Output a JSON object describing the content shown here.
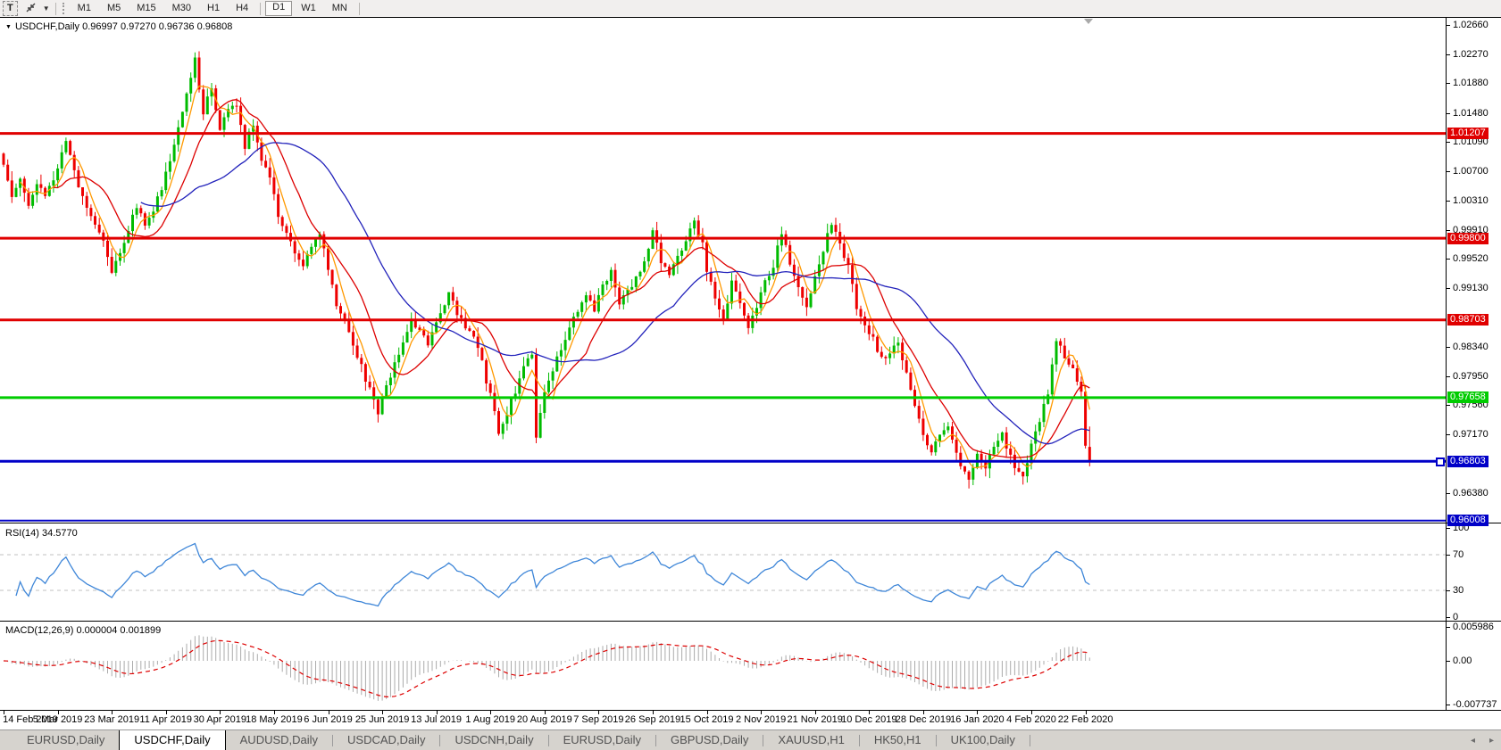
{
  "toolbar": {
    "text_tool_label": "T",
    "timeframes": [
      "M1",
      "M5",
      "M15",
      "M30",
      "H1",
      "H4",
      "D1",
      "W1",
      "MN"
    ],
    "active_timeframe": "D1"
  },
  "chart": {
    "title_symbol": "USDCHF,Daily",
    "ohlc_text": "0.96997 0.97270 0.96736 0.96808"
  },
  "chart_data": {
    "type": "candlestick",
    "symbol": "USDCHF",
    "period": "Daily",
    "bars": 262,
    "seed": 13,
    "noise": 0.0011,
    "wick": 0.0013,
    "price_top": 1.0276,
    "price_bottom": 0.9598,
    "last_ohlc": [
      0.96997,
      0.9727,
      0.96736,
      0.96808
    ],
    "up_color": "#00bb00",
    "down_color": "#ee0000",
    "close_anchors": [
      [
        0,
        1.0078
      ],
      [
        2,
        1.004
      ],
      [
        4,
        1.0065
      ],
      [
        6,
        1.0028
      ],
      [
        8,
        1.0052
      ],
      [
        10,
        1.0035
      ],
      [
        12,
        1.006
      ],
      [
        15,
        1.0112
      ],
      [
        17,
        1.007
      ],
      [
        19,
        1.0035
      ],
      [
        21,
        1.0008
      ],
      [
        23,
        0.9992
      ],
      [
        26,
        0.9938
      ],
      [
        28,
        0.9965
      ],
      [
        30,
        0.9992
      ],
      [
        32,
        1.0022
      ],
      [
        34,
        1.0
      ],
      [
        36,
        1.0018
      ],
      [
        38,
        1.005
      ],
      [
        40,
        1.0088
      ],
      [
        42,
        1.013
      ],
      [
        44,
        1.0178
      ],
      [
        46,
        1.0218
      ],
      [
        48,
        1.015
      ],
      [
        50,
        1.0185
      ],
      [
        52,
        1.0128
      ],
      [
        54,
        1.0148
      ],
      [
        56,
        1.0162
      ],
      [
        58,
        1.0105
      ],
      [
        60,
        1.0135
      ],
      [
        62,
        1.0088
      ],
      [
        64,
        1.0058
      ],
      [
        66,
        1.001
      ],
      [
        68,
        0.9985
      ],
      [
        70,
        0.9958
      ],
      [
        72,
        0.994
      ],
      [
        74,
        0.9968
      ],
      [
        76,
        0.9985
      ],
      [
        78,
        0.994
      ],
      [
        80,
        0.9892
      ],
      [
        82,
        0.987
      ],
      [
        84,
        0.984
      ],
      [
        86,
        0.9808
      ],
      [
        88,
        0.9775
      ],
      [
        90,
        0.9745
      ],
      [
        92,
        0.9778
      ],
      [
        94,
        0.9815
      ],
      [
        96,
        0.984
      ],
      [
        98,
        0.9872
      ],
      [
        100,
        0.9855
      ],
      [
        102,
        0.9838
      ],
      [
        104,
        0.9862
      ],
      [
        106,
        0.9895
      ],
      [
        107,
        0.9912
      ],
      [
        109,
        0.988
      ],
      [
        111,
        0.9858
      ],
      [
        113,
        0.9845
      ],
      [
        115,
        0.9812
      ],
      [
        117,
        0.9768
      ],
      [
        119,
        0.9722
      ],
      [
        121,
        0.9748
      ],
      [
        123,
        0.9775
      ],
      [
        125,
        0.9812
      ],
      [
        127,
        0.9828
      ],
      [
        128,
        0.9712
      ],
      [
        130,
        0.9768
      ],
      [
        132,
        0.98
      ],
      [
        134,
        0.9835
      ],
      [
        136,
        0.9858
      ],
      [
        138,
        0.9885
      ],
      [
        140,
        0.9902
      ],
      [
        142,
        0.9885
      ],
      [
        144,
        0.9915
      ],
      [
        146,
        0.9932
      ],
      [
        148,
        0.9895
      ],
      [
        150,
        0.9908
      ],
      [
        152,
        0.9925
      ],
      [
        154,
        0.9948
      ],
      [
        156,
        0.9988
      ],
      [
        158,
        0.995
      ],
      [
        160,
        0.9928
      ],
      [
        162,
        0.9955
      ],
      [
        164,
        0.998
      ],
      [
        166,
        1.0002
      ],
      [
        168,
        0.9972
      ],
      [
        169,
        0.994
      ],
      [
        171,
        0.9895
      ],
      [
        173,
        0.9872
      ],
      [
        175,
        0.992
      ],
      [
        177,
        0.9888
      ],
      [
        179,
        0.9862
      ],
      [
        181,
        0.989
      ],
      [
        183,
        0.9922
      ],
      [
        185,
        0.9945
      ],
      [
        187,
        0.9985
      ],
      [
        189,
        0.9948
      ],
      [
        191,
        0.9912
      ],
      [
        193,
        0.989
      ],
      [
        195,
        0.9928
      ],
      [
        197,
        0.9965
      ],
      [
        199,
        0.9998
      ],
      [
        201,
        0.997
      ],
      [
        203,
        0.994
      ],
      [
        205,
        0.989
      ],
      [
        207,
        0.9862
      ],
      [
        209,
        0.9845
      ],
      [
        211,
        0.982
      ],
      [
        213,
        0.9828
      ],
      [
        215,
        0.9842
      ],
      [
        217,
        0.9798
      ],
      [
        219,
        0.9758
      ],
      [
        221,
        0.9718
      ],
      [
        223,
        0.9695
      ],
      [
        225,
        0.9712
      ],
      [
        227,
        0.9722
      ],
      [
        229,
        0.9688
      ],
      [
        231,
        0.9668
      ],
      [
        232,
        0.966
      ],
      [
        234,
        0.9692
      ],
      [
        236,
        0.9675
      ],
      [
        238,
        0.9695
      ],
      [
        240,
        0.9714
      ],
      [
        242,
        0.969
      ],
      [
        244,
        0.9662
      ],
      [
        245,
        0.9655
      ],
      [
        247,
        0.97
      ],
      [
        249,
        0.9738
      ],
      [
        251,
        0.9772
      ],
      [
        253,
        0.9845
      ],
      [
        255,
        0.9818
      ],
      [
        257,
        0.9802
      ],
      [
        258,
        0.979
      ],
      [
        259,
        0.9775
      ],
      [
        260,
        0.97
      ],
      [
        261,
        0.96808
      ]
    ],
    "moving_averages": [
      {
        "period": 5,
        "color": "#ff9900"
      },
      {
        "period": 13,
        "color": "#dd0000"
      },
      {
        "period": 34,
        "color": "#2222bb"
      }
    ],
    "price_ticks": [
      "1.02660",
      "1.02270",
      "1.01880",
      "1.01480",
      "1.01090",
      "1.00700",
      "1.00310",
      "0.99910",
      "0.99520",
      "0.99130",
      "0.98340",
      "0.97950",
      "0.97560",
      "0.97170",
      "0.96380"
    ],
    "hlines": [
      {
        "price": 1.01207,
        "label": "1.01207",
        "color": "#e00000",
        "width": 3
      },
      {
        "price": 0.998,
        "label": "0.99800",
        "color": "#e00000",
        "width": 3
      },
      {
        "price": 0.98703,
        "label": "0.98703",
        "color": "#e00000",
        "width": 3
      },
      {
        "price": 0.97658,
        "label": "0.97658",
        "color": "#00cc00",
        "width": 3
      },
      {
        "price": 0.96803,
        "label": "0.96803",
        "color": "#0000c8",
        "width": 3,
        "marker": true
      },
      {
        "price": 0.96008,
        "label": "0.96008",
        "color": "#0000c8",
        "width": 2
      }
    ],
    "date_labels": [
      "14 Feb 2019",
      "5 Mar 2019",
      "23 Mar 2019",
      "11 Apr 2019",
      "30 Apr 2019",
      "18 May 2019",
      "6 Jun 2019",
      "25 Jun 2019",
      "13 Jul 2019",
      "1 Aug 2019",
      "20 Aug 2019",
      "7 Sep 2019",
      "26 Sep 2019",
      "15 Oct 2019",
      "2 Nov 2019",
      "21 Nov 2019",
      "10 Dec 2019",
      "28 Dec 2019",
      "16 Jan 2020",
      "4 Feb 2020",
      "22 Feb 2020"
    ],
    "label_every_bars": 13,
    "rsi": {
      "name": "RSI(14) 34.5770",
      "period": 14,
      "last": 34.577,
      "color": "#3e86d8",
      "level_color": "#c0c0c0",
      "ticks": [
        "100",
        "70",
        "30",
        "0"
      ],
      "overbought": 70,
      "oversold": 30
    },
    "macd": {
      "name": "MACD(12,26,9) 0.000004 0.001899",
      "fast": 12,
      "slow": 26,
      "signal": 9,
      "last_main": 4e-06,
      "last_signal": 0.001899,
      "hist_color": "#ababab",
      "signal_color": "#dd0000",
      "ticks": [
        {
          "v": 0.005986,
          "label": "0.005986"
        },
        {
          "v": 0,
          "label": "0.00"
        },
        {
          "v": -0.007737,
          "label": "-0.007737"
        }
      ]
    }
  },
  "tabs": {
    "active_index": 1,
    "items": [
      "EURUSD,Daily",
      "USDCHF,Daily",
      "AUDUSD,Daily",
      "USDCAD,Daily",
      "USDCNH,Daily",
      "EURUSD,Daily",
      "GBPUSD,Daily",
      "XAUUSD,H1",
      "HK50,H1",
      "UK100,Daily"
    ],
    "scroll_left": "◂",
    "scroll_right": "▸"
  }
}
